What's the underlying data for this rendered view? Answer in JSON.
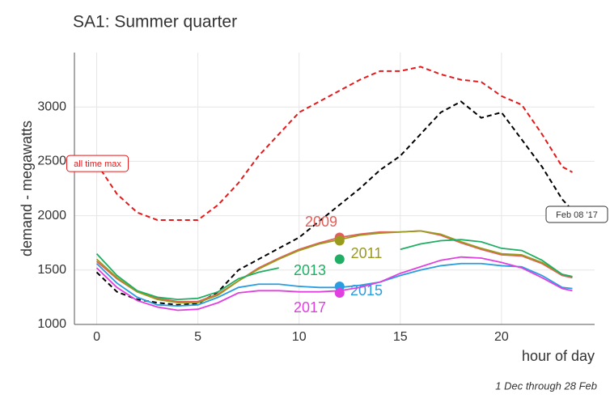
{
  "chart_data": {
    "type": "line",
    "title": "SA1: Summer quarter",
    "xlabel": "hour of day",
    "ylabel": "demand - megawatts",
    "caption": "1 Dec through 28 Feb",
    "x": [
      0,
      1,
      2,
      3,
      4,
      5,
      6,
      7,
      8,
      9,
      10,
      11,
      12,
      13,
      14,
      15,
      16,
      17,
      18,
      19,
      20,
      21,
      22,
      23,
      23.5
    ],
    "xlim": [
      -1.1,
      24.6
    ],
    "ylim": [
      1000,
      3500
    ],
    "xticks": [
      0,
      5,
      10,
      15,
      20
    ],
    "yticks": [
      1000,
      1500,
      2000,
      2500,
      3000
    ],
    "grid": true,
    "series": [
      {
        "name": "all time max",
        "color": "#e31a1c",
        "dashed": true,
        "values": [
          2480,
          2200,
          2030,
          1960,
          1960,
          1960,
          2100,
          2300,
          2550,
          2750,
          2950,
          3050,
          3150,
          3250,
          3330,
          3330,
          3370,
          3300,
          3250,
          3230,
          3100,
          3020,
          2750,
          2450,
          2400
        ]
      },
      {
        "name": "Feb 08 '17",
        "color": "#000000",
        "dashed": true,
        "values": [
          1480,
          1300,
          1230,
          1200,
          1180,
          1190,
          1300,
          1500,
          1600,
          1700,
          1800,
          1950,
          2100,
          2250,
          2420,
          2550,
          2750,
          2950,
          3050,
          2900,
          2950,
          2700,
          2450,
          2150,
          2050
        ]
      },
      {
        "name": "2009",
        "color": "#e0605a",
        "values": [
          1580,
          1420,
          1300,
          1240,
          1210,
          1210,
          1280,
          1400,
          1520,
          1610,
          1690,
          1750,
          1800,
          1830,
          1850,
          1850,
          1860,
          1820,
          1750,
          1690,
          1640,
          1630,
          1560,
          1450,
          1430
        ],
        "point": {
          "x": 12,
          "y": 1800
        }
      },
      {
        "name": "2011",
        "color": "#9a9a1e",
        "values": [
          1600,
          1430,
          1300,
          1230,
          1200,
          1200,
          1270,
          1400,
          1510,
          1600,
          1680,
          1740,
          1780,
          1820,
          1840,
          1850,
          1860,
          1830,
          1760,
          1700,
          1650,
          1640,
          1570,
          1460,
          1440
        ],
        "point": {
          "x": 12,
          "y": 1770
        }
      },
      {
        "name": "2013",
        "color": "#1fae63",
        "values": [
          1650,
          1450,
          1310,
          1250,
          1230,
          1240,
          1300,
          1420,
          1480,
          1520,
          null,
          null,
          null,
          null,
          null,
          1690,
          1740,
          1770,
          1780,
          1760,
          1700,
          1680,
          1590,
          1460,
          1440
        ],
        "point": {
          "x": 12,
          "y": 1600
        }
      },
      {
        "name": "2015",
        "color": "#2a9de0",
        "values": [
          1560,
          1380,
          1250,
          1180,
          1170,
          1180,
          1250,
          1340,
          1370,
          1370,
          1350,
          1340,
          1340,
          1360,
          1390,
          1450,
          1500,
          1540,
          1560,
          1560,
          1540,
          1530,
          1450,
          1340,
          1330
        ],
        "point": {
          "x": 12,
          "y": 1350
        }
      },
      {
        "name": "2017",
        "color": "#e040e0",
        "values": [
          1520,
          1340,
          1220,
          1160,
          1130,
          1140,
          1200,
          1290,
          1310,
          1310,
          1300,
          1300,
          1310,
          1340,
          1390,
          1470,
          1530,
          1590,
          1620,
          1610,
          1570,
          1520,
          1430,
          1330,
          1310
        ],
        "point": {
          "x": 12,
          "y": 1290
        }
      }
    ]
  }
}
